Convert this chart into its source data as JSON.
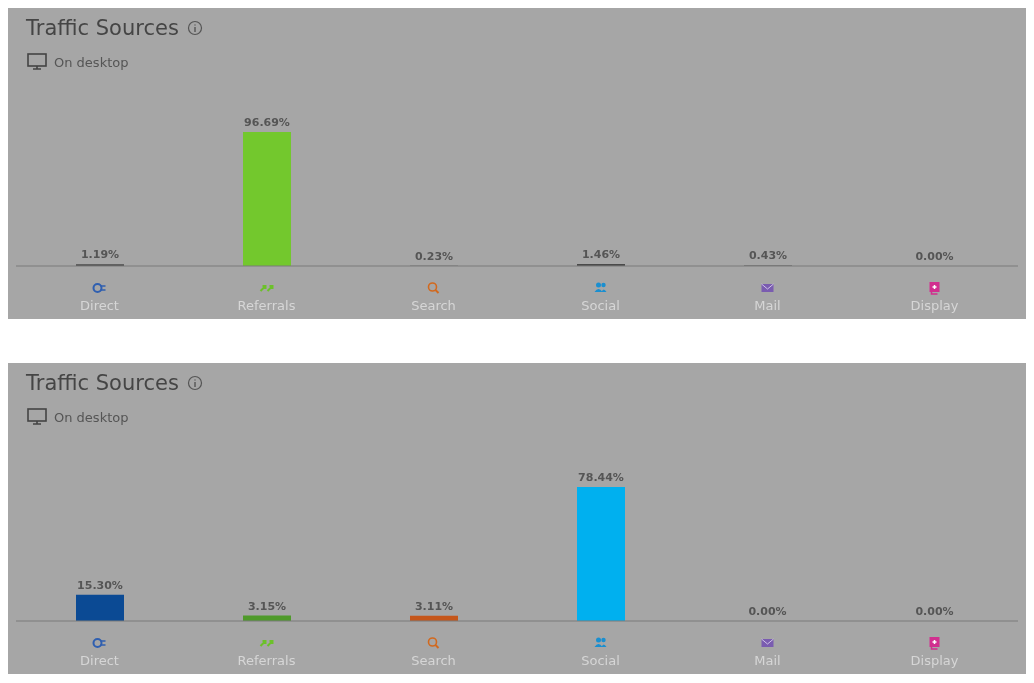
{
  "chart_data": [
    {
      "type": "bar",
      "title": "Traffic Sources",
      "subtitle": "On desktop",
      "categories": [
        "Direct",
        "Referrals",
        "Search",
        "Social",
        "Mail",
        "Display"
      ],
      "values": [
        1.19,
        96.69,
        0.23,
        1.46,
        0.43,
        0.0
      ],
      "colors": [
        "#4a4a4a",
        "#73c82d",
        "#4a4a4a",
        "#4a4a4a",
        "#4a4a4a",
        "#4a4a4a"
      ],
      "value_labels": [
        "1.19%",
        "96.69%",
        "0.23%",
        "1.46%",
        "0.43%",
        "0.00%"
      ],
      "grid": false,
      "legend": false
    },
    {
      "type": "bar",
      "title": "Traffic Sources",
      "subtitle": "On desktop",
      "categories": [
        "Direct",
        "Referrals",
        "Search",
        "Social",
        "Mail",
        "Display"
      ],
      "values": [
        15.3,
        3.15,
        3.11,
        78.44,
        0.0,
        0.0
      ],
      "colors": [
        "#0b4a94",
        "#4f9a2a",
        "#c5561a",
        "#00b0ef",
        "#4a4a4a",
        "#4a4a4a"
      ],
      "value_labels": [
        "15.30%",
        "3.15%",
        "3.11%",
        "78.44%",
        "0.00%",
        "0.00%"
      ],
      "grid": false,
      "legend": false
    }
  ]
}
